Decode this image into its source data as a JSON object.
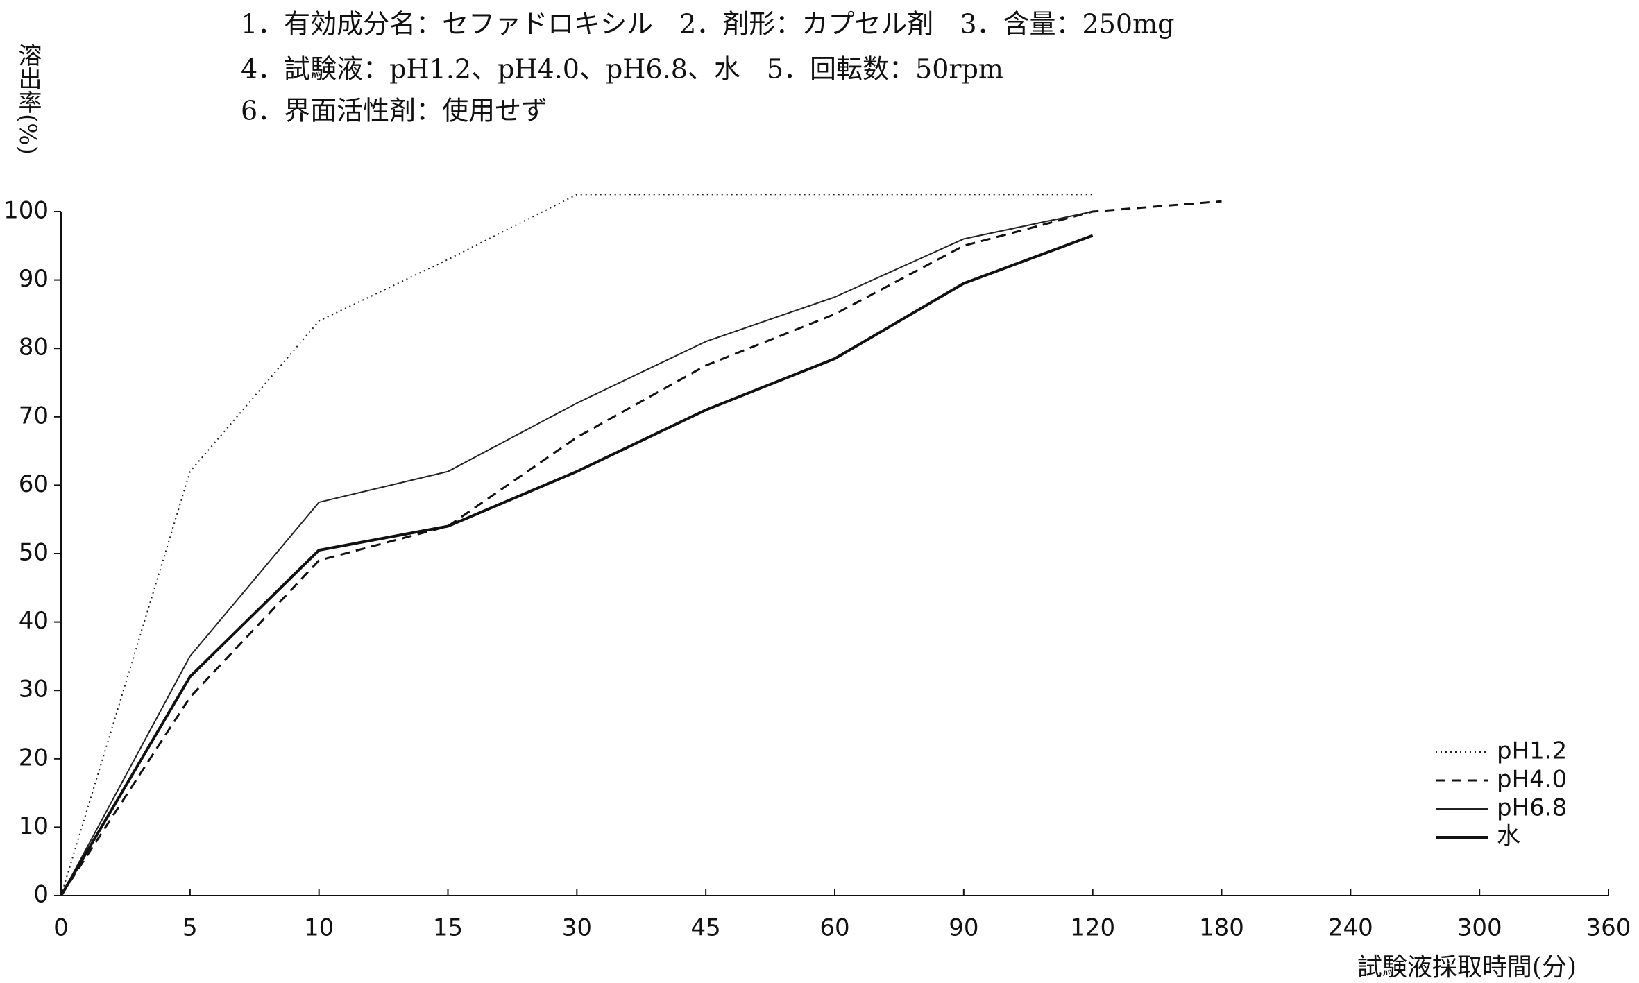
{
  "chart_data": {
    "type": "line",
    "header": [
      "1．有効成分名：セファドロキシル　2．剤形：カプセル剤　3．含量：250mg",
      "4．試験液：pH1.2、pH4.0、pH6.8、水　5．回転数：50rpm",
      "6．界面活性剤：使用せず"
    ],
    "ylabel": "溶出率(%)",
    "xlabel": "試験液採取時間(分)",
    "categories": [
      "0",
      "5",
      "10",
      "15",
      "30",
      "45",
      "60",
      "90",
      "120",
      "180",
      "240",
      "300",
      "360"
    ],
    "series": [
      {
        "name": "pH1.2",
        "color": "#222222",
        "style": "dotted",
        "width": 2,
        "values": [
          0,
          62,
          84,
          93,
          102.5,
          102.5,
          102.5,
          102.5,
          102.5,
          null,
          null,
          null,
          null
        ]
      },
      {
        "name": "pH4.0",
        "color": "#111111",
        "style": "dashed",
        "width": 3,
        "values": [
          0,
          29,
          49,
          54,
          67,
          77.5,
          85,
          95,
          100,
          101.5,
          null,
          null,
          null
        ]
      },
      {
        "name": "pH6.8",
        "color": "#222222",
        "style": "solid",
        "width": 2,
        "values": [
          0,
          35,
          57.5,
          62,
          72,
          81,
          87.5,
          96,
          100,
          null,
          null,
          null,
          null
        ]
      },
      {
        "name": "水",
        "color": "#111111",
        "style": "solid",
        "width": 4,
        "values": [
          0,
          32,
          50.5,
          54,
          62,
          71,
          78.5,
          89.5,
          96.5,
          null,
          null,
          null,
          null
        ]
      }
    ],
    "ylim": [
      0,
      100
    ],
    "yticks": [
      0,
      10,
      20,
      30,
      40,
      50,
      60,
      70,
      80,
      90,
      100
    ],
    "legend": "lower right",
    "grid": false
  }
}
